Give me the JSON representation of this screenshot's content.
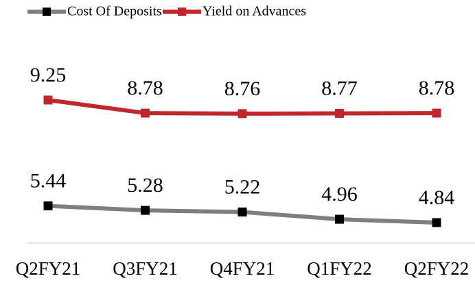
{
  "chart_data": {
    "type": "line",
    "categories": [
      "Q2FY21",
      "Q3FY21",
      "Q4FY21",
      "Q1FY22",
      "Q2FY22"
    ],
    "series": [
      {
        "name": "Cost Of Deposits",
        "color": "#7f7f7f",
        "marker_color": "#000000",
        "values": [
          5.44,
          5.28,
          5.22,
          4.96,
          4.84
        ]
      },
      {
        "name": "Yield on Advances",
        "color": "#c0272d",
        "marker_color": "#c0272d",
        "values": [
          9.25,
          8.78,
          8.76,
          8.77,
          8.78
        ]
      }
    ],
    "ylim": [
      4.1,
      11
    ],
    "legend": "top"
  }
}
